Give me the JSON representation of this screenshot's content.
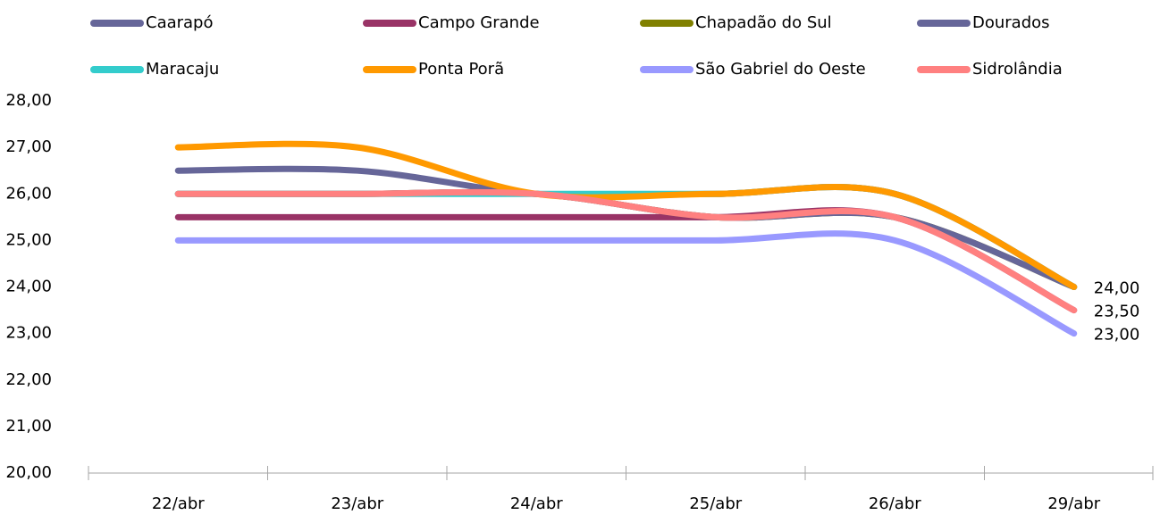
{
  "chart_data": {
    "type": "line",
    "categories": [
      "22/abr",
      "23/abr",
      "24/abr",
      "25/abr",
      "26/abr",
      "29/abr"
    ],
    "series": [
      {
        "name": "Caarapó",
        "color": "#666699",
        "values": [
          26.5,
          26.5,
          26,
          26,
          26,
          24
        ]
      },
      {
        "name": "Campo Grande",
        "color": "#993366",
        "values": [
          25.5,
          25.5,
          25.5,
          25.5,
          25.5,
          23.5
        ]
      },
      {
        "name": "Chapadão do Sul",
        "color": "#808000",
        "values": [
          26,
          26,
          26,
          25.5,
          25.5,
          24
        ]
      },
      {
        "name": "Dourados",
        "color": "#666699",
        "values": [
          26,
          26,
          26,
          25.5,
          25.5,
          24
        ]
      },
      {
        "name": "Maracaju",
        "color": "#33cccc",
        "values": [
          26,
          26,
          26,
          26,
          26,
          24
        ]
      },
      {
        "name": "Ponta Porã",
        "color": "#ff9900",
        "values": [
          27,
          27,
          26,
          26,
          26,
          24
        ],
        "value_labels": [
          null,
          null,
          null,
          null,
          null,
          "24,00"
        ]
      },
      {
        "name": "São Gabriel do Oeste",
        "color": "#9999ff",
        "values": [
          25,
          25,
          25,
          25,
          25,
          23
        ],
        "value_labels": [
          null,
          null,
          null,
          null,
          null,
          "23,00"
        ]
      },
      {
        "name": "Sidrolândia",
        "color": "#ff8080",
        "values": [
          26,
          26,
          26,
          25.5,
          25.5,
          23.5
        ],
        "value_labels": [
          null,
          null,
          null,
          null,
          null,
          "23,50"
        ]
      }
    ],
    "ylim": [
      20,
      28
    ],
    "yticks": [
      {
        "value": 20,
        "label": "20,00"
      },
      {
        "value": 21,
        "label": "21,00"
      },
      {
        "value": 22,
        "label": "22,00"
      },
      {
        "value": 23,
        "label": "23,00"
      },
      {
        "value": 24,
        "label": "24,00"
      },
      {
        "value": 25,
        "label": "25,00"
      },
      {
        "value": 26,
        "label": "26,00"
      },
      {
        "value": 27,
        "label": "27,00"
      },
      {
        "value": 28,
        "label": "28,00"
      }
    ],
    "grid": false
  }
}
